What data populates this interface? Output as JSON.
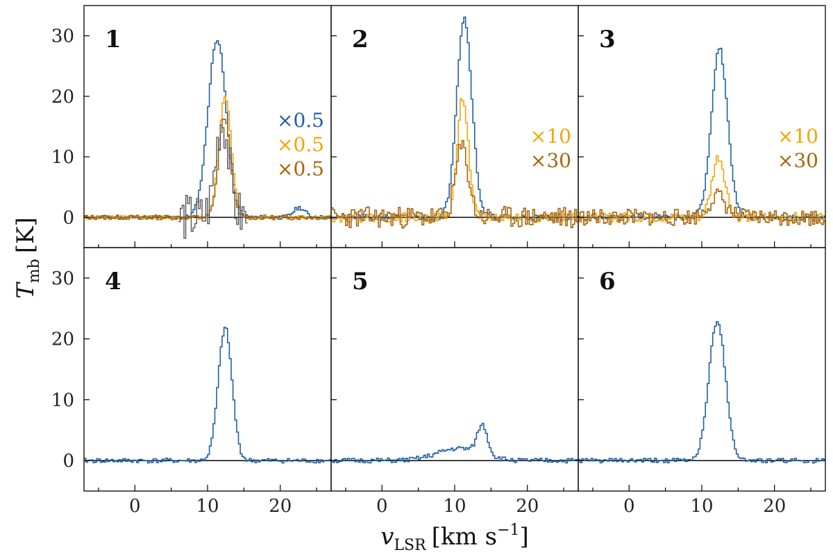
{
  "chart_data": {
    "type": "line",
    "layout": "2 rows x 3 columns, shared axes",
    "xlabel_main": "v",
    "xlabel_sub": "LSR",
    "xlabel_unit": "[km s",
    "xlabel_unit_sup": "−1",
    "xlabel_unit_close": "]",
    "ylabel_main": "T",
    "ylabel_sub": "mb",
    "ylabel_unit": "[K]",
    "xlim": [
      -7,
      27
    ],
    "ylim": [
      -5,
      35
    ],
    "xticks_labeled": [
      0,
      10,
      20
    ],
    "xticks_minor": [
      -5,
      5,
      15,
      25
    ],
    "yticks_labeled": [
      0,
      10,
      20,
      30
    ],
    "colors": {
      "blue": "#1f5fa6",
      "orange": "#f5a300",
      "brown": "#a8650a",
      "gray": "#555555",
      "zero_line": "#000000"
    },
    "panels": [
      {
        "id": "1",
        "scale_labels": [
          {
            "text": "×0.5",
            "color": "#1f5fa6"
          },
          {
            "text": "×0.5",
            "color": "#f5a300"
          },
          {
            "text": "×0.5",
            "color": "#a8650a"
          }
        ],
        "series": [
          {
            "name": "blue",
            "color": "#1f5fa6",
            "peak": 29.5,
            "center": 11.2,
            "sigma": 1.25,
            "noise": 0.35,
            "seed": 11,
            "bumps": [
              [
                22.5,
                1.6,
                0.8
              ]
            ]
          },
          {
            "name": "orange",
            "color": "#f5a300",
            "peak": 20.0,
            "center": 12.3,
            "sigma": 0.85,
            "noise": 0.3,
            "seed": 12,
            "bumps": []
          },
          {
            "name": "brown",
            "color": "#a8650a",
            "peak": 16.5,
            "center": 12.2,
            "sigma": 0.8,
            "noise": 0.4,
            "seed": 13,
            "bumps": []
          },
          {
            "name": "gray",
            "color": "#555555",
            "peak": 16.0,
            "center": 11.9,
            "sigma": 0.9,
            "noise": 4.0,
            "seed": 14,
            "range": [
              6.0,
              15.5
            ],
            "bumps": []
          }
        ]
      },
      {
        "id": "2",
        "scale_labels": [
          {
            "text": "×10",
            "color": "#f5a300"
          },
          {
            "text": "×30",
            "color": "#a8650a"
          }
        ],
        "series": [
          {
            "name": "blue",
            "color": "#1f5fa6",
            "peak": 33.0,
            "center": 11.2,
            "sigma": 1.05,
            "noise": 0.5,
            "seed": 21,
            "bumps": []
          },
          {
            "name": "orange",
            "color": "#f5a300",
            "peak": 20.0,
            "center": 11.0,
            "sigma": 0.75,
            "noise": 0.8,
            "seed": 22,
            "bumps": []
          },
          {
            "name": "brown",
            "color": "#a8650a",
            "peak": 11.5,
            "center": 10.9,
            "sigma": 0.9,
            "noise": 1.8,
            "seed": 23,
            "bumps": []
          }
        ]
      },
      {
        "id": "3",
        "scale_labels": [
          {
            "text": "×10",
            "color": "#f5a300"
          },
          {
            "text": "×30",
            "color": "#a8650a"
          }
        ],
        "series": [
          {
            "name": "blue",
            "color": "#1f5fa6",
            "peak": 28.0,
            "center": 12.3,
            "sigma": 1.1,
            "noise": 0.5,
            "seed": 31,
            "bumps": []
          },
          {
            "name": "orange",
            "color": "#f5a300",
            "peak": 10.0,
            "center": 12.2,
            "sigma": 0.9,
            "noise": 0.8,
            "seed": 32,
            "bumps": []
          },
          {
            "name": "brown",
            "color": "#a8650a",
            "peak": 3.5,
            "center": 12.0,
            "sigma": 1.2,
            "noise": 1.4,
            "seed": 33,
            "bumps": []
          }
        ]
      },
      {
        "id": "4",
        "scale_labels": [],
        "series": [
          {
            "name": "blue",
            "color": "#1f5fa6",
            "peak": 21.8,
            "center": 12.3,
            "sigma": 0.95,
            "noise": 0.4,
            "seed": 41,
            "bumps": []
          }
        ]
      },
      {
        "id": "5",
        "scale_labels": [],
        "series": [
          {
            "name": "blue",
            "color": "#1f5fa6",
            "peak": 4.8,
            "center": 13.7,
            "sigma": 0.7,
            "noise": 0.4,
            "seed": 51,
            "bumps": [
              [
                10.5,
                2.0,
                3.0
              ]
            ]
          }
        ]
      },
      {
        "id": "6",
        "scale_labels": [],
        "series": [
          {
            "name": "blue",
            "color": "#1f5fa6",
            "peak": 23.0,
            "center": 12.0,
            "sigma": 1.15,
            "noise": 0.4,
            "seed": 61,
            "bumps": []
          }
        ]
      }
    ]
  }
}
